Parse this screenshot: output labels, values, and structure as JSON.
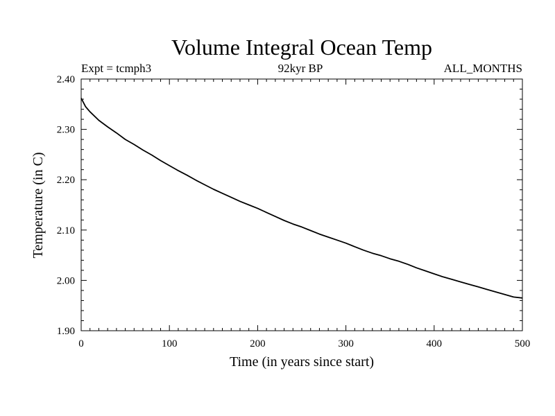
{
  "chart_data": {
    "type": "line",
    "title": "Volume Integral Ocean Temp",
    "subtitle_left": "Expt = tcmph3",
    "subtitle_center": "92kyr BP",
    "subtitle_right": "ALL_MONTHS",
    "xlabel": "Time (in years since start)",
    "ylabel": "Temperature (in C)",
    "xlim": [
      0,
      500
    ],
    "ylim": [
      1.9,
      2.4
    ],
    "x_ticks": [
      "0",
      "100",
      "200",
      "300",
      "400",
      "500"
    ],
    "y_ticks": [
      "1.90",
      "2.00",
      "2.10",
      "2.20",
      "2.30",
      "2.40"
    ],
    "grid": false,
    "series": [
      {
        "color": "#000000",
        "x": [
          0,
          5,
          10,
          20,
          30,
          40,
          50,
          60,
          70,
          80,
          90,
          100,
          110,
          120,
          130,
          140,
          150,
          160,
          170,
          180,
          190,
          200,
          210,
          220,
          230,
          240,
          250,
          260,
          270,
          280,
          290,
          300,
          310,
          320,
          330,
          340,
          350,
          360,
          370,
          380,
          390,
          400,
          410,
          420,
          430,
          440,
          450,
          460,
          470,
          480,
          490,
          500
        ],
        "y": [
          2.362,
          2.345,
          2.335,
          2.318,
          2.305,
          2.293,
          2.28,
          2.27,
          2.259,
          2.249,
          2.238,
          2.228,
          2.218,
          2.209,
          2.199,
          2.19,
          2.181,
          2.173,
          2.165,
          2.157,
          2.15,
          2.143,
          2.135,
          2.127,
          2.119,
          2.112,
          2.106,
          2.099,
          2.092,
          2.086,
          2.08,
          2.074,
          2.067,
          2.06,
          2.054,
          2.049,
          2.043,
          2.038,
          2.032,
          2.025,
          2.019,
          2.013,
          2.007,
          2.002,
          1.997,
          1.992,
          1.987,
          1.982,
          1.977,
          1.972,
          1.967,
          1.965
        ]
      }
    ]
  }
}
